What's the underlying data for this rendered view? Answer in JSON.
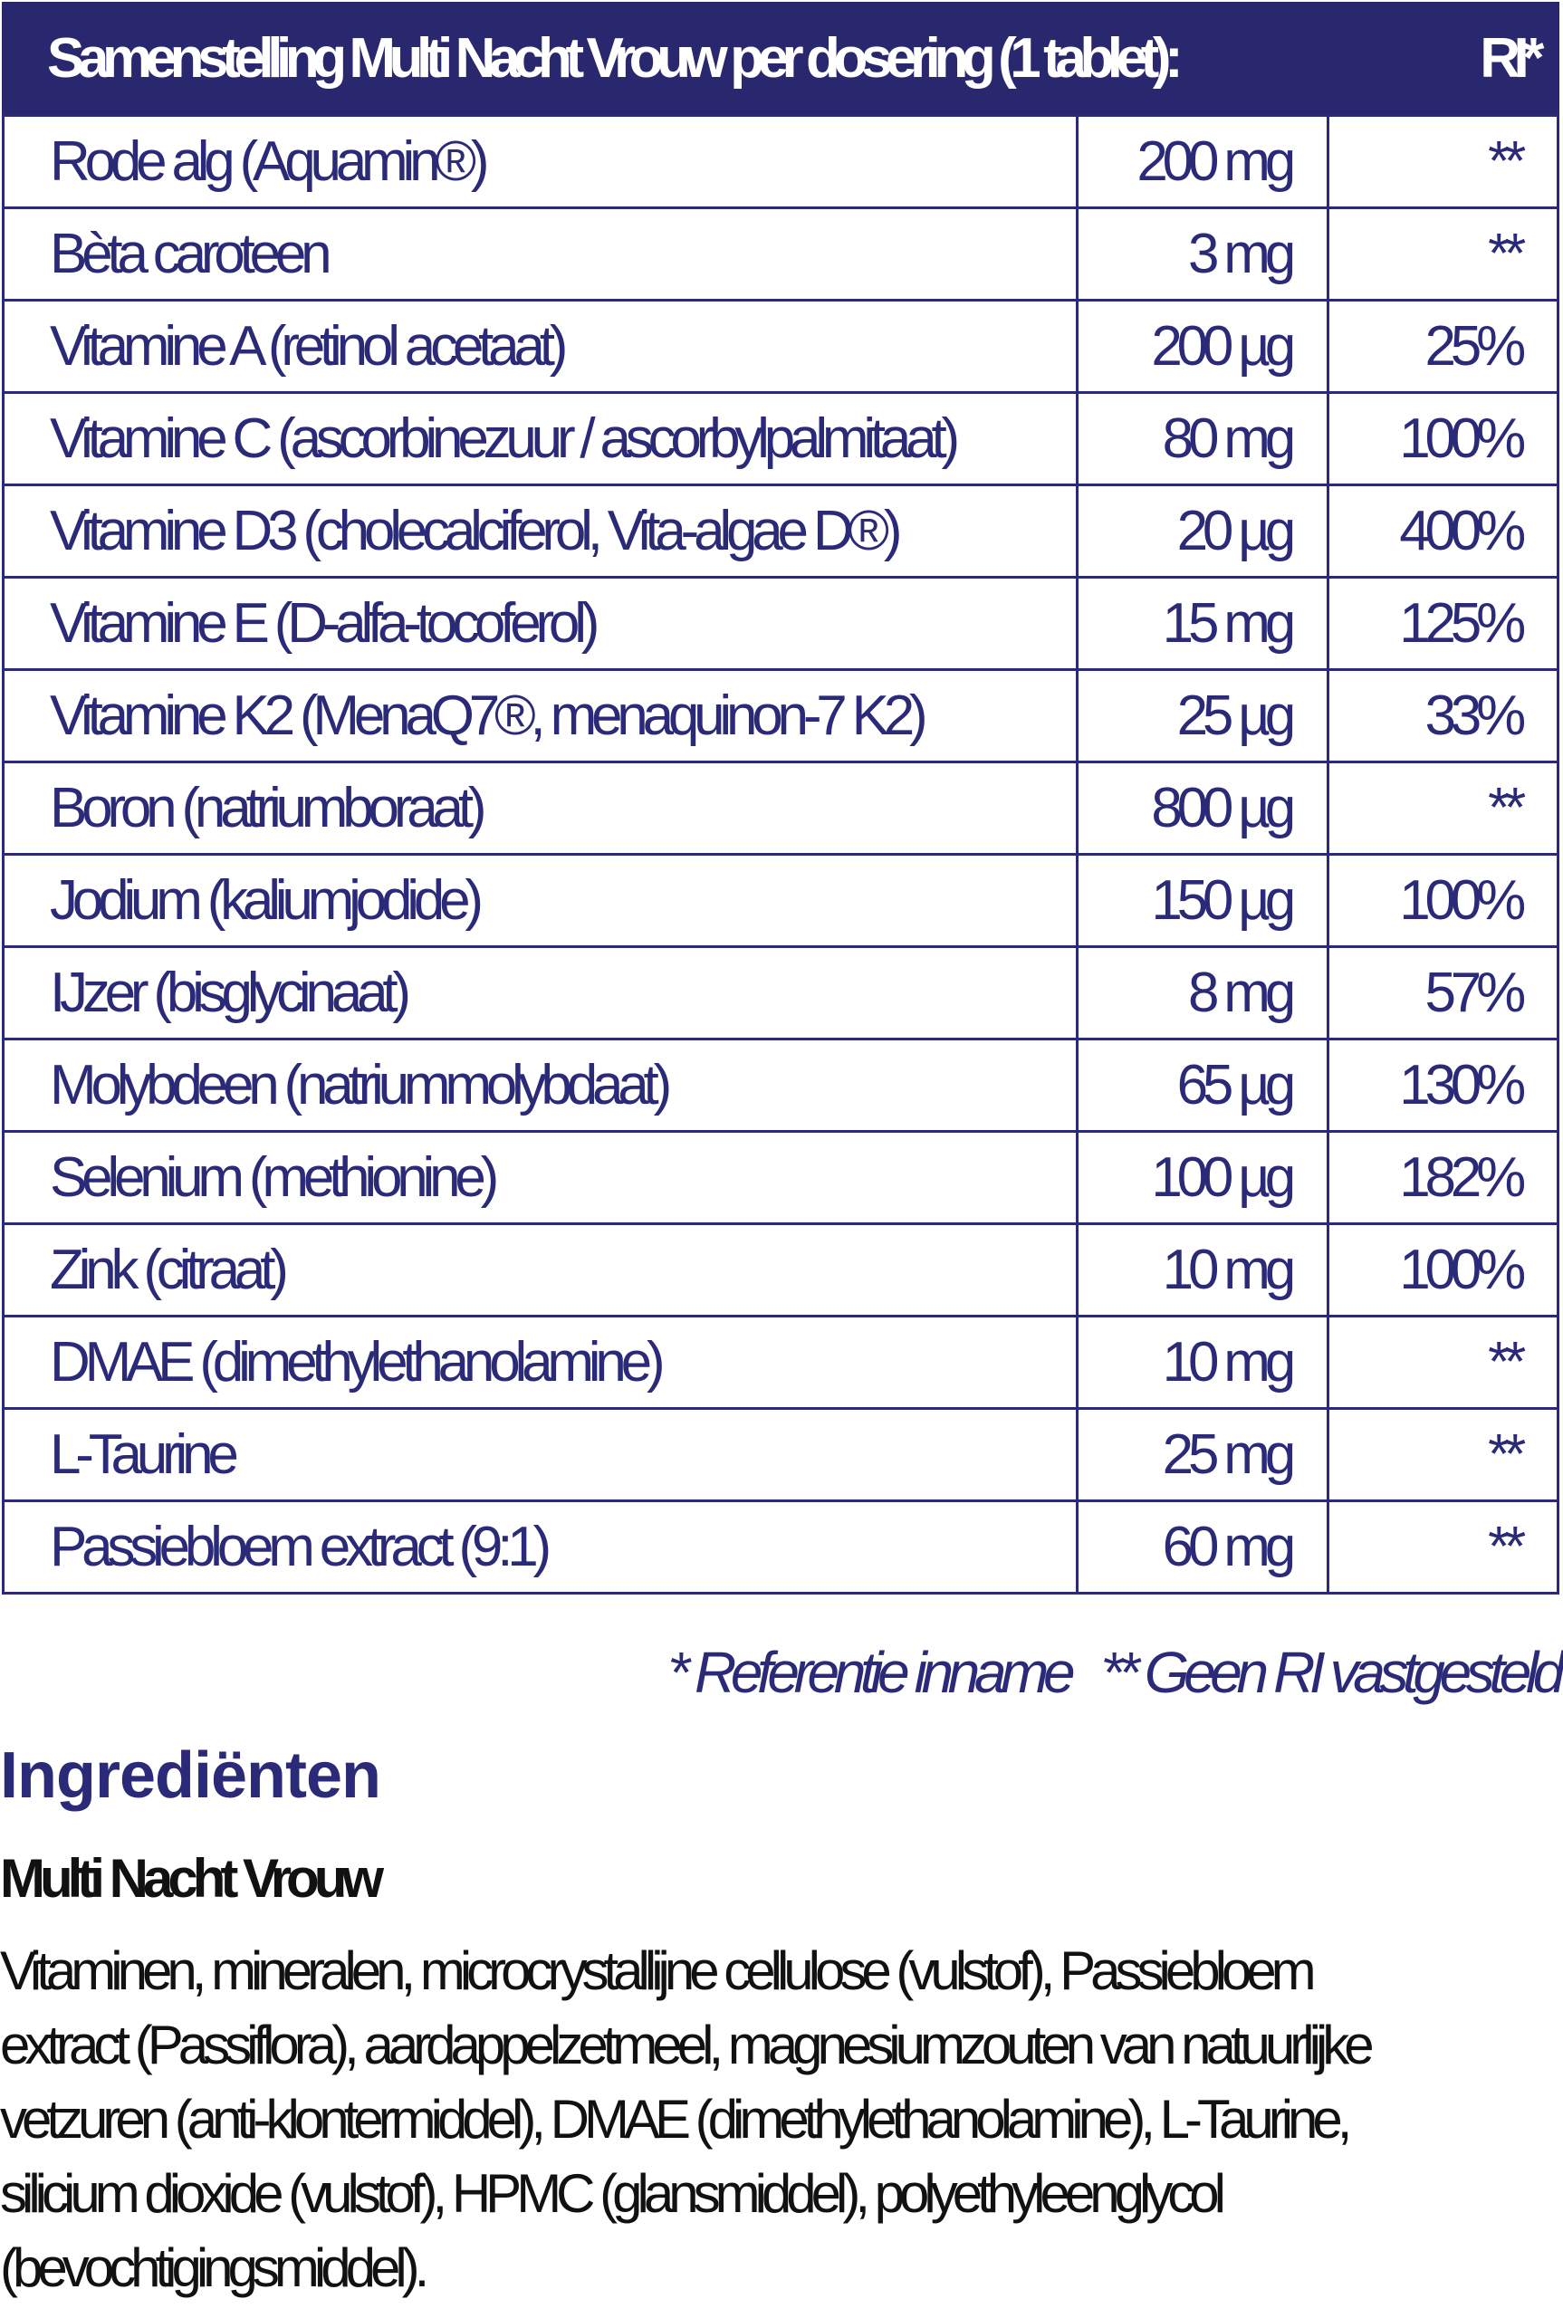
{
  "table": {
    "header": {
      "title": "Samenstelling Multi Nacht Vrouw per dosering (1 tablet):",
      "ri": "RI*"
    },
    "rows": [
      {
        "name": "Rode alg (Aquamin®)",
        "amount": "200 mg",
        "ri": "**"
      },
      {
        "name": "Bèta caroteen",
        "amount": "3 mg",
        "ri": "**"
      },
      {
        "name": "Vitamine A (retinol acetaat)",
        "amount": "200 µg",
        "ri": "25%"
      },
      {
        "name": "Vitamine C (ascorbinezuur / ascorbylpalmitaat)",
        "amount": "80 mg",
        "ri": "100%"
      },
      {
        "name": "Vitamine D3 (cholecalciferol, Vita-algae D®)",
        "amount": "20 µg",
        "ri": "400%"
      },
      {
        "name": "Vitamine E (D-alfa-tocoferol)",
        "amount": "15 mg",
        "ri": "125%"
      },
      {
        "name": "Vitamine K2 (MenaQ7®, menaquinon-7 K2)",
        "amount": "25 µg",
        "ri": "33%"
      },
      {
        "name": "Boron (natriumboraat)",
        "amount": "800 µg",
        "ri": "**"
      },
      {
        "name": "Jodium (kaliumjodide)",
        "amount": "150 µg",
        "ri": "100%"
      },
      {
        "name": "IJzer (bisglycinaat)",
        "amount": "8 mg",
        "ri": "57%"
      },
      {
        "name": "Molybdeen (natriummolybdaat)",
        "amount": "65 µg",
        "ri": "130%"
      },
      {
        "name": "Selenium (methionine)",
        "amount": "100 µg",
        "ri": "182%"
      },
      {
        "name": "Zink (citraat)",
        "amount": "10 mg",
        "ri": "100%"
      },
      {
        "name": "DMAE (dimethylethanolamine)",
        "amount": "10 mg",
        "ri": "**"
      },
      {
        "name": "L-Taurine",
        "amount": "25 mg",
        "ri": "**"
      },
      {
        "name": "Passiebloem extract (9:1)",
        "amount": "60 mg",
        "ri": "**"
      }
    ]
  },
  "footnote": {
    "ref": "* Referentie inname",
    "none": "** Geen RI vastgesteld"
  },
  "ingredients": {
    "title": "Ingrediënten",
    "product": "Multi Nacht Vrouw",
    "lines": [
      "Vitaminen, mineralen, microcrystallijne cellulose (vulstof), Passiebloem",
      "extract (Passiflora), aardappelzetmeel, magnesiumzouten van natuurlijke",
      "vetzuren (anti-klontermiddel), DMAE (dimethylethanolamine), L-Taurine,",
      "silicium dioxide (vulstof), HPMC (glansmiddel), polyethyleenglycol",
      "(bevochtigingsmiddel)."
    ]
  },
  "colors": {
    "navy": "#29286f",
    "text": "#2b2a78"
  }
}
